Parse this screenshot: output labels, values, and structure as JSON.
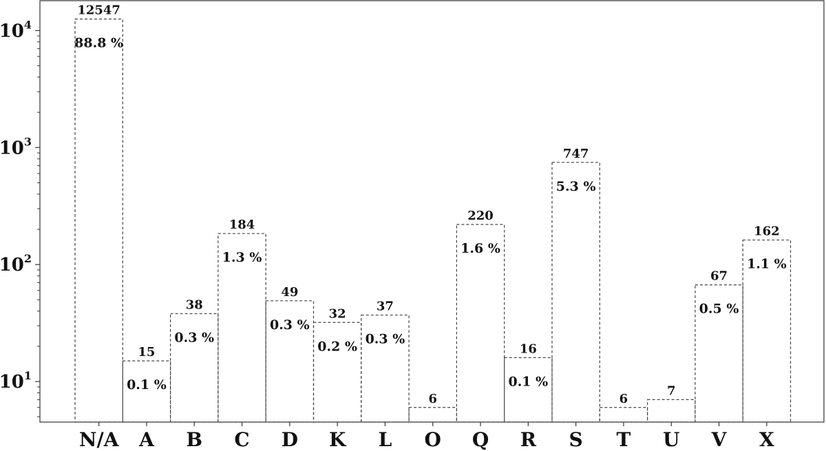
{
  "chart_data": {
    "type": "bar",
    "title": "",
    "xlabel": "",
    "ylabel": "",
    "yscale": "log",
    "ylim": [
      4.5,
      18000
    ],
    "y_ticks": [
      {
        "value": 10,
        "base": "10",
        "exp": "1"
      },
      {
        "value": 100,
        "base": "10",
        "exp": "2"
      },
      {
        "value": 1000,
        "base": "10",
        "exp": "3"
      },
      {
        "value": 10000,
        "base": "10",
        "exp": "4"
      }
    ],
    "grid": false,
    "bar_style": "dashed-outline",
    "categories": [
      "N/A",
      "A",
      "B",
      "C",
      "D",
      "K",
      "L",
      "O",
      "Q",
      "R",
      "S",
      "T",
      "U",
      "V",
      "X"
    ],
    "values": [
      12547,
      15,
      38,
      184,
      49,
      32,
      37,
      6,
      220,
      16,
      747,
      6,
      7,
      67,
      162
    ],
    "value_labels": [
      "12547",
      "15",
      "38",
      "184",
      "49",
      "32",
      "37",
      "6",
      "220",
      "16",
      "747",
      "6",
      "7",
      "67",
      "162"
    ],
    "percent_labels": [
      "88.8 %",
      "0.1 %",
      "0.3 %",
      "1.3 %",
      "0.3 %",
      "0.2 %",
      "0.3 %",
      "",
      "1.6 %",
      "0.1 %",
      "5.3 %",
      "",
      "",
      "0.5 %",
      "1.1 %"
    ]
  }
}
